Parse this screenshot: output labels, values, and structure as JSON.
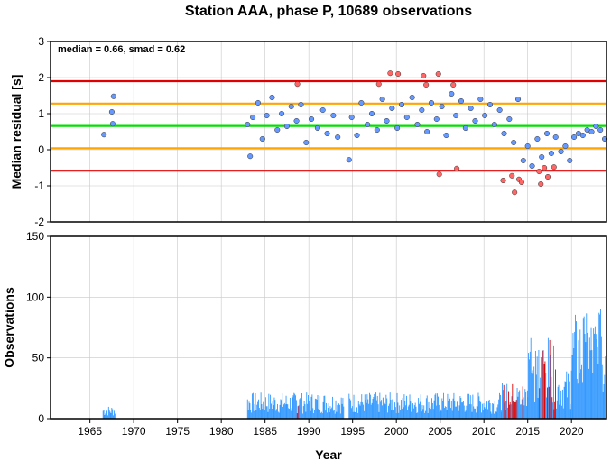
{
  "chart_data": [
    {
      "type": "scatter",
      "title": "Station AAA, phase P, 10689 observations",
      "annotation": "median = 0.66, smad = 0.62",
      "xlabel": "",
      "ylabel": "Median residual [s]",
      "xlim": [
        1960.5,
        2024
      ],
      "ylim": [
        -2,
        3
      ],
      "yticks": [
        "-2",
        "-1",
        "0",
        "1",
        "2",
        "3"
      ],
      "grid": true,
      "reference_lines": [
        {
          "name": "median",
          "y": 0.66,
          "color": "#00e000"
        },
        {
          "name": "median ± 1 smad",
          "y": [
            1.28,
            0.04
          ],
          "color": "#ffa500"
        },
        {
          "name": "median ± 2 smad",
          "y": [
            1.9,
            -0.58
          ],
          "color": "#e00000"
        }
      ],
      "point_colors": {
        "inlier": "#6699ff",
        "outlier": "#ff6666"
      },
      "series": [
        {
          "category": "inlier",
          "points": [
            [
              1966.6,
              0.42
            ],
            [
              1967.5,
              1.05
            ],
            [
              1967.6,
              0.72
            ],
            [
              1967.7,
              1.48
            ],
            [
              1983.0,
              0.7
            ],
            [
              1983.3,
              -0.18
            ],
            [
              1983.6,
              0.9
            ],
            [
              1984.2,
              1.3
            ],
            [
              1984.7,
              0.3
            ],
            [
              1985.2,
              0.95
            ],
            [
              1985.8,
              1.45
            ],
            [
              1986.4,
              0.55
            ],
            [
              1986.9,
              1.0
            ],
            [
              1987.5,
              0.65
            ],
            [
              1988.0,
              1.2
            ],
            [
              1988.6,
              0.8
            ],
            [
              1989.1,
              1.25
            ],
            [
              1989.7,
              0.2
            ],
            [
              1990.3,
              0.85
            ],
            [
              1991.0,
              0.6
            ],
            [
              1991.6,
              1.1
            ],
            [
              1992.1,
              0.45
            ],
            [
              1992.8,
              0.95
            ],
            [
              1993.3,
              0.35
            ],
            [
              1994.6,
              -0.28
            ],
            [
              1994.9,
              0.9
            ],
            [
              1995.5,
              0.4
            ],
            [
              1996.0,
              1.3
            ],
            [
              1996.7,
              0.7
            ],
            [
              1997.2,
              1.0
            ],
            [
              1997.8,
              0.55
            ],
            [
              1998.4,
              1.4
            ],
            [
              1998.9,
              0.8
            ],
            [
              1999.5,
              1.15
            ],
            [
              2000.1,
              0.6
            ],
            [
              2000.6,
              1.25
            ],
            [
              2001.2,
              0.9
            ],
            [
              2001.8,
              1.45
            ],
            [
              2002.4,
              0.7
            ],
            [
              2002.9,
              1.1
            ],
            [
              2003.5,
              0.5
            ],
            [
              2004.0,
              1.3
            ],
            [
              2004.6,
              0.85
            ],
            [
              2005.2,
              1.2
            ],
            [
              2005.7,
              0.4
            ],
            [
              2006.3,
              1.55
            ],
            [
              2006.8,
              0.95
            ],
            [
              2007.4,
              1.35
            ],
            [
              2007.9,
              0.6
            ],
            [
              2008.5,
              1.15
            ],
            [
              2009.0,
              0.8
            ],
            [
              2009.6,
              1.4
            ],
            [
              2010.1,
              0.95
            ],
            [
              2010.7,
              1.25
            ],
            [
              2011.2,
              0.7
            ],
            [
              2011.8,
              1.1
            ],
            [
              2012.3,
              0.45
            ],
            [
              2012.9,
              0.85
            ],
            [
              2013.4,
              0.2
            ],
            [
              2013.9,
              1.4
            ],
            [
              2014.5,
              -0.3
            ],
            [
              2015.0,
              0.1
            ],
            [
              2015.5,
              -0.45
            ],
            [
              2016.1,
              0.3
            ],
            [
              2016.6,
              -0.2
            ],
            [
              2017.2,
              0.45
            ],
            [
              2017.7,
              -0.1
            ],
            [
              2018.2,
              0.35
            ],
            [
              2018.8,
              -0.05
            ],
            [
              2019.3,
              0.1
            ],
            [
              2019.8,
              -0.3
            ],
            [
              2020.3,
              0.35
            ],
            [
              2020.8,
              0.45
            ],
            [
              2021.3,
              0.4
            ],
            [
              2021.8,
              0.55
            ],
            [
              2022.3,
              0.5
            ],
            [
              2022.8,
              0.65
            ],
            [
              2023.3,
              0.55
            ],
            [
              2023.8,
              0.3
            ]
          ]
        },
        {
          "category": "outlier",
          "points": [
            [
              1988.7,
              1.82
            ],
            [
              1998.0,
              1.82
            ],
            [
              1999.3,
              2.12
            ],
            [
              2000.2,
              2.1
            ],
            [
              2003.1,
              2.05
            ],
            [
              2003.4,
              1.8
            ],
            [
              2004.8,
              2.1
            ],
            [
              2004.9,
              -0.68
            ],
            [
              2006.5,
              1.8
            ],
            [
              2006.9,
              -0.52
            ],
            [
              2012.2,
              -0.85
            ],
            [
              2013.2,
              -0.72
            ],
            [
              2013.5,
              -1.18
            ],
            [
              2014.0,
              -0.82
            ],
            [
              2014.3,
              -0.9
            ],
            [
              2016.3,
              -0.6
            ],
            [
              2016.5,
              -0.95
            ],
            [
              2016.9,
              -0.5
            ],
            [
              2017.3,
              -0.75
            ],
            [
              2018.0,
              -0.48
            ]
          ]
        }
      ]
    },
    {
      "type": "bar",
      "title": "",
      "xlabel": "Year",
      "ylabel": "Observations",
      "xlim": [
        1960.5,
        2024
      ],
      "ylim": [
        0,
        150
      ],
      "yticks": [
        "0",
        "50",
        "100",
        "150"
      ],
      "xticks": [
        "1965",
        "1970",
        "1975",
        "1980",
        "1985",
        "1990",
        "1995",
        "2000",
        "2005",
        "2010",
        "2015",
        "2020"
      ],
      "grid": true,
      "bar_colors": {
        "normal": "#3399ff",
        "flagged": "#e00000"
      },
      "segments": [
        {
          "x0": 1966.5,
          "x1": 1967.9,
          "level": 8
        },
        {
          "x0": 1983.0,
          "x1": 1994.0,
          "level": 16
        },
        {
          "x0": 1994.6,
          "x1": 2012.0,
          "level": 16
        },
        {
          "x0": 2012.0,
          "x1": 2015.0,
          "level": 22
        },
        {
          "x0": 2015.0,
          "x1": 2018.0,
          "level": 50
        },
        {
          "x0": 2018.0,
          "x1": 2020.0,
          "level": 30
        },
        {
          "x0": 2020.0,
          "x1": 2024.0,
          "level": 65
        }
      ],
      "peaks": [
        {
          "x": 2015.3,
          "value": 85
        },
        {
          "x": 2021.5,
          "value": 95
        },
        {
          "x": 2023.3,
          "value": 120
        }
      ],
      "flagged_ranges": [
        [
          1988.4,
          1988.8
        ],
        [
          2012.0,
          2014.6
        ],
        [
          2016.0,
          2018.2
        ]
      ]
    }
  ]
}
